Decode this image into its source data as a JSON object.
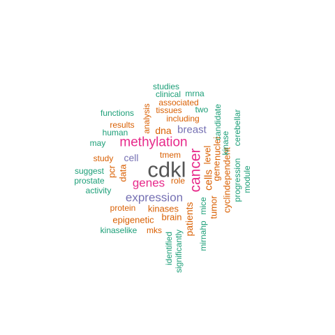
{
  "palette": {
    "green": "#1b9e77",
    "orange": "#d95f02",
    "purple": "#7570b3",
    "magenta": "#e7298a",
    "gray": "#555555"
  },
  "words": [
    {
      "text": "cdkl",
      "color": "gray"
    },
    {
      "text": "methylation",
      "color": "magenta"
    },
    {
      "text": "cancer",
      "color": "magenta"
    },
    {
      "text": "genes",
      "color": "magenta"
    },
    {
      "text": "expression",
      "color": "purple"
    },
    {
      "text": "breast",
      "color": "purple"
    },
    {
      "text": "cell",
      "color": "purple"
    },
    {
      "text": "cells",
      "color": "orange"
    },
    {
      "text": "patients",
      "color": "orange"
    },
    {
      "text": "dna",
      "color": "orange"
    },
    {
      "text": "kinases",
      "color": "orange"
    },
    {
      "text": "brain",
      "color": "orange"
    },
    {
      "text": "data",
      "color": "orange"
    },
    {
      "text": "level",
      "color": "orange"
    },
    {
      "text": "gene",
      "color": "orange"
    },
    {
      "text": "tumor",
      "color": "orange"
    },
    {
      "text": "nuclei",
      "color": "orange"
    },
    {
      "text": "pcr",
      "color": "orange"
    },
    {
      "text": "tmem",
      "color": "orange"
    },
    {
      "text": "role",
      "color": "orange"
    },
    {
      "text": "study",
      "color": "orange"
    },
    {
      "text": "protein",
      "color": "orange"
    },
    {
      "text": "epigenetic",
      "color": "orange"
    },
    {
      "text": "mks",
      "color": "orange"
    },
    {
      "text": "analysis",
      "color": "orange"
    },
    {
      "text": "associated",
      "color": "orange"
    },
    {
      "text": "tissues",
      "color": "orange"
    },
    {
      "text": "including",
      "color": "orange"
    },
    {
      "text": "results",
      "color": "orange"
    },
    {
      "text": "cyclindependent",
      "color": "orange"
    },
    {
      "text": "studies",
      "color": "green"
    },
    {
      "text": "clinical",
      "color": "green"
    },
    {
      "text": "mrna",
      "color": "green"
    },
    {
      "text": "two",
      "color": "green"
    },
    {
      "text": "functions",
      "color": "green"
    },
    {
      "text": "human",
      "color": "green"
    },
    {
      "text": "may",
      "color": "green"
    },
    {
      "text": "suggest",
      "color": "green"
    },
    {
      "text": "prostate",
      "color": "green"
    },
    {
      "text": "activity",
      "color": "green"
    },
    {
      "text": "kinaselike",
      "color": "green"
    },
    {
      "text": "identified",
      "color": "green"
    },
    {
      "text": "significantly",
      "color": "green"
    },
    {
      "text": "mirnahp",
      "color": "green"
    },
    {
      "text": "mice",
      "color": "green"
    },
    {
      "text": "candidate",
      "color": "green"
    },
    {
      "text": "kinase",
      "color": "green"
    },
    {
      "text": "progression",
      "color": "green"
    },
    {
      "text": "module",
      "color": "green"
    },
    {
      "text": "cerebellar",
      "color": "green"
    }
  ]
}
